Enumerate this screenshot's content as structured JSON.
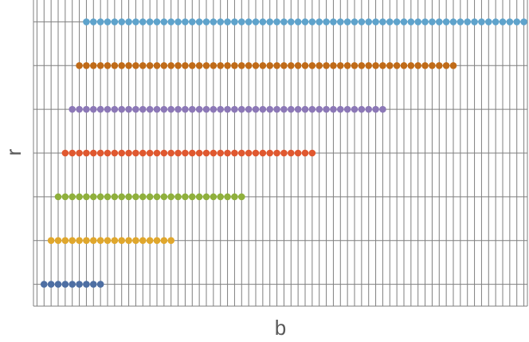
{
  "chart_data": {
    "type": "scatter",
    "title": "",
    "xlabel": "b",
    "ylabel": "r",
    "grid": true,
    "legend": "none",
    "xlim": [
      0.5,
      70.5
    ],
    "ylim": [
      0.5,
      7.5
    ],
    "gridline_color": "#7f7f7f",
    "series": [
      {
        "r": 1,
        "x_start": 2,
        "x_end": 10,
        "color": "#4e6fa3"
      },
      {
        "r": 2,
        "x_start": 3,
        "x_end": 20,
        "color": "#e0a72c"
      },
      {
        "r": 3,
        "x_start": 4,
        "x_end": 30,
        "color": "#8fb03c"
      },
      {
        "r": 4,
        "x_start": 5,
        "x_end": 40,
        "color": "#e0582f"
      },
      {
        "r": 5,
        "x_start": 6,
        "x_end": 50,
        "color": "#8c78b7"
      },
      {
        "r": 6,
        "x_start": 7,
        "x_end": 60,
        "color": "#c06b18"
      },
      {
        "r": 7,
        "x_start": 8,
        "x_end": 70,
        "color": "#5ea3cc"
      }
    ]
  }
}
